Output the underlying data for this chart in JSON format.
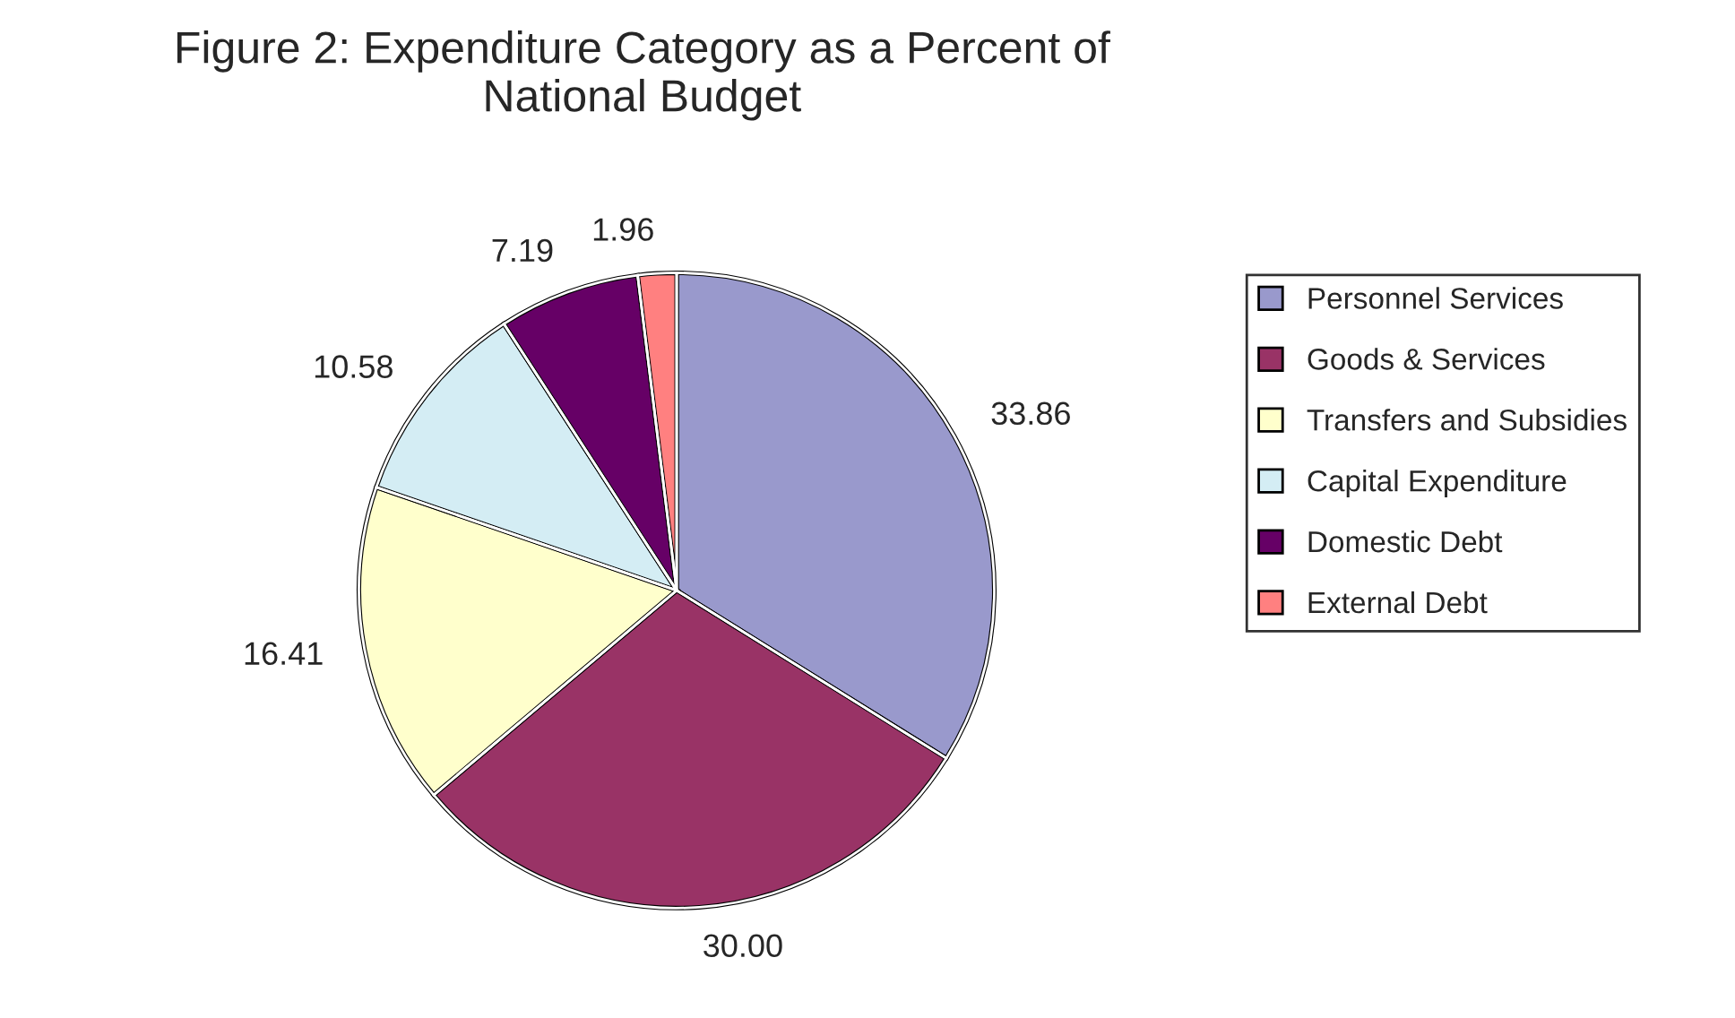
{
  "chart_data": {
    "type": "pie",
    "title": "Figure 2: Expenditure Category as a Percent of\nNational Budget",
    "categories": [
      "Personnel Services",
      "Goods & Services",
      "Transfers and Subsidies",
      "Capital Expenditure",
      "Domestic Debt",
      "External Debt"
    ],
    "values": [
      33.86,
      30.0,
      16.41,
      10.58,
      7.19,
      1.96
    ],
    "value_labels": [
      "33.86",
      "30.00",
      "16.41",
      "10.58",
      "7.19",
      "1.96"
    ],
    "colors": [
      "#9999cc",
      "#993366",
      "#ffffcc",
      "#d4edf4",
      "#660066",
      "#ff8080"
    ],
    "legend": "right"
  }
}
